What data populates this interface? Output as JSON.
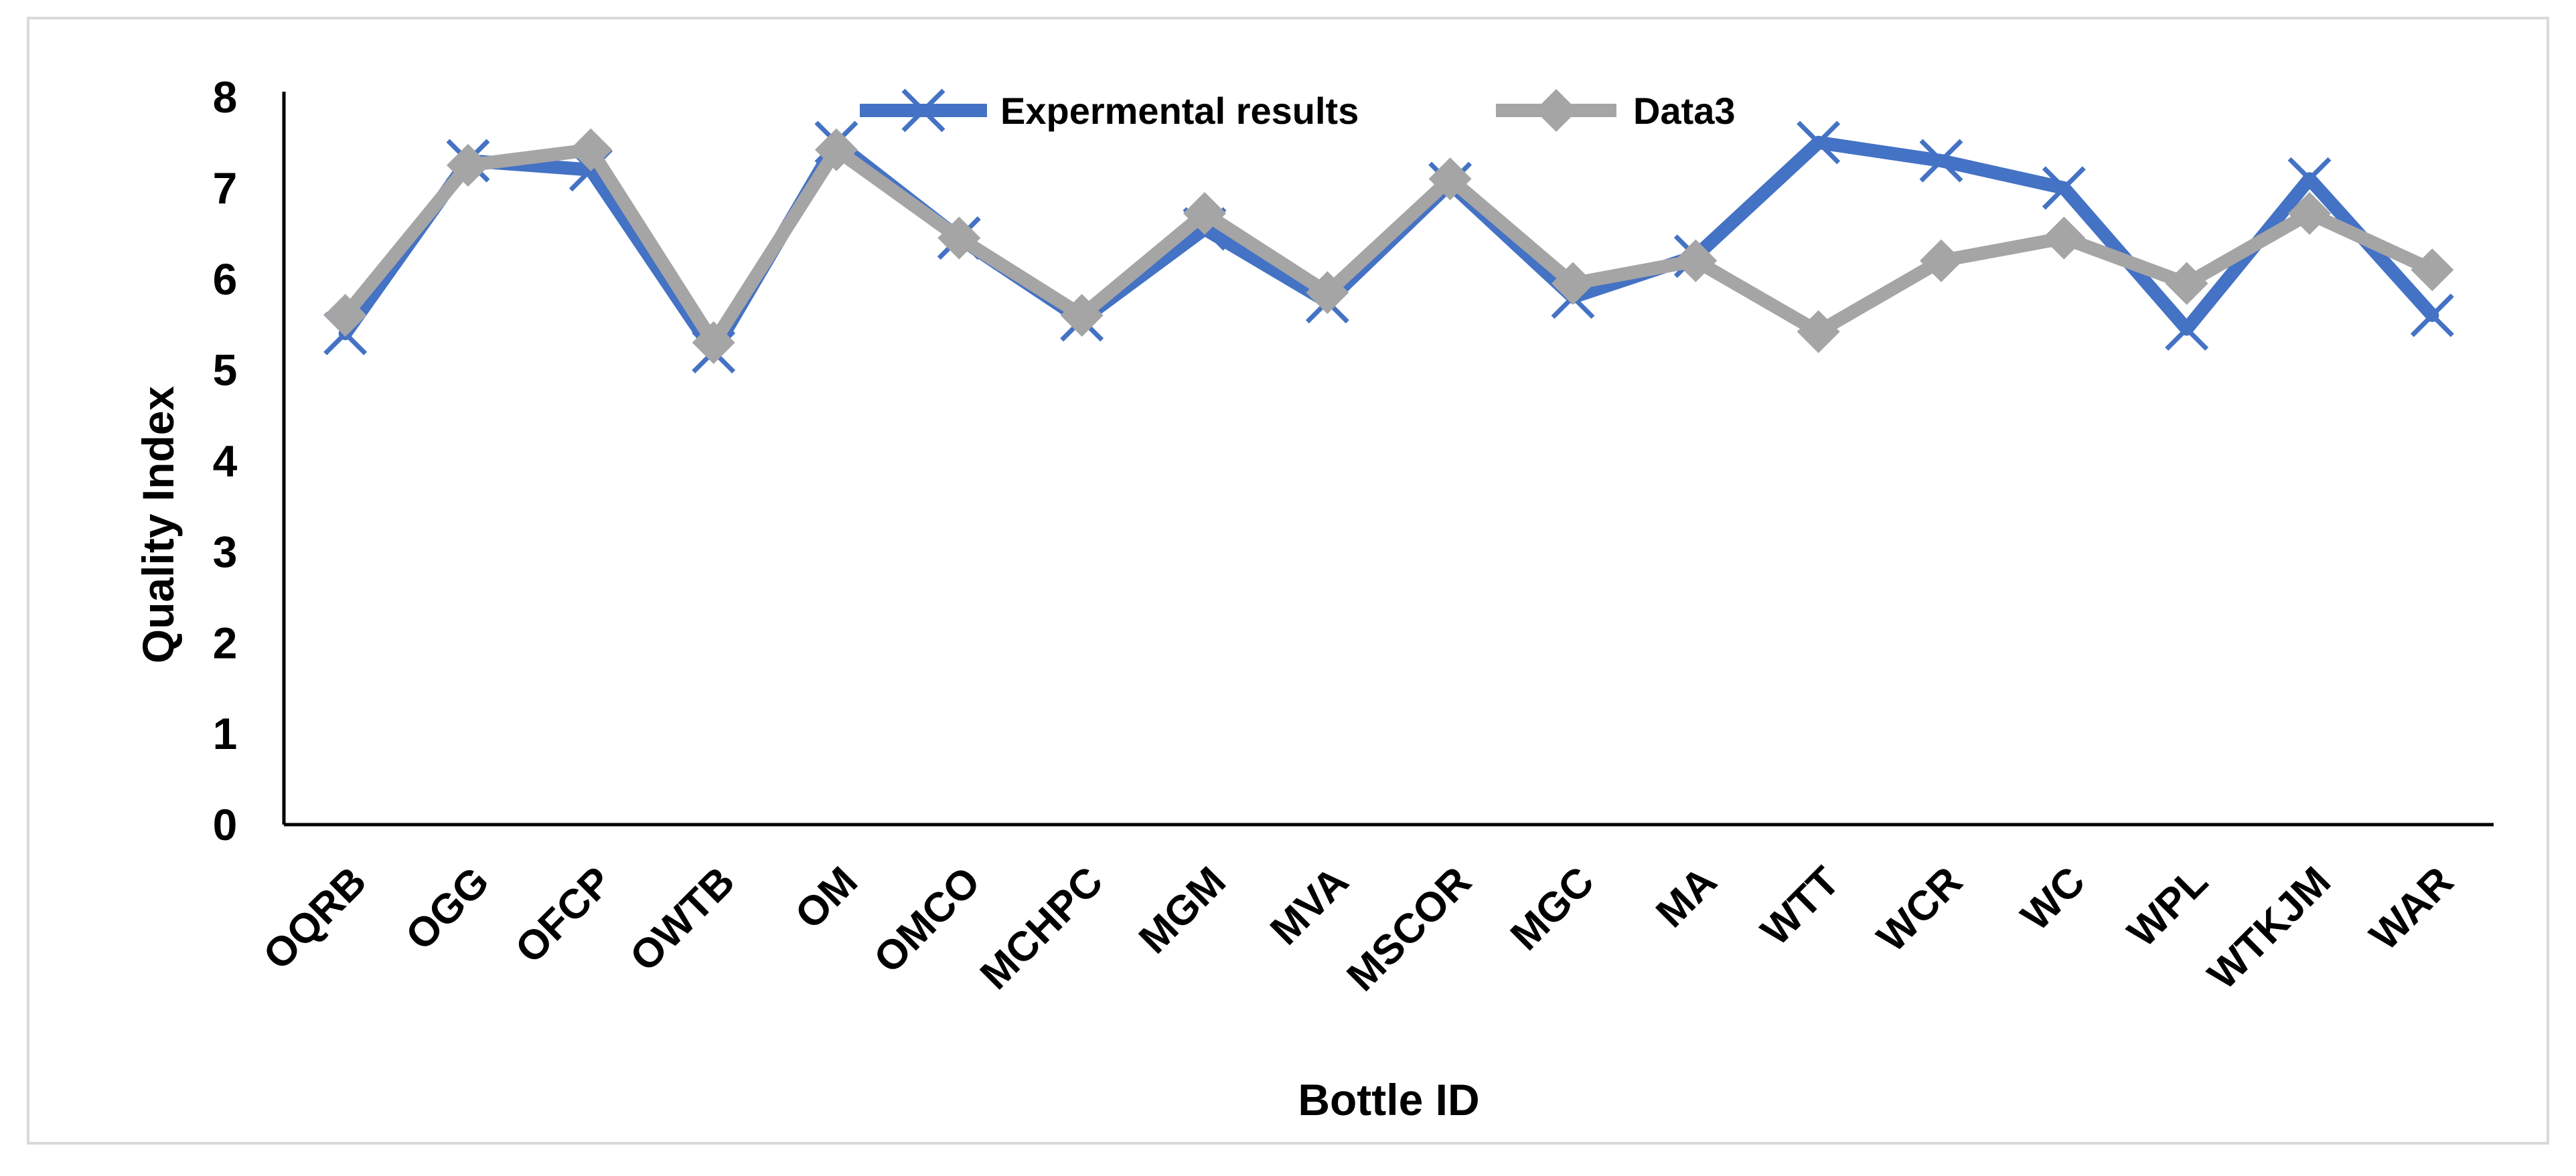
{
  "chart_data": {
    "type": "line",
    "title": "",
    "xlabel": "Bottle ID",
    "ylabel": "Quality Index",
    "ylim": [
      0,
      8
    ],
    "yticks": [
      "0",
      "1",
      "2",
      "3",
      "4",
      "5",
      "6",
      "7",
      "8"
    ],
    "grid": false,
    "legend_position": "top",
    "categories": [
      "OQRB",
      "OGG",
      "OFCP",
      "OWTB",
      "OM",
      "OMCO",
      "MCHPC",
      "MGM",
      "MVA",
      "MSCOR",
      "MGC",
      "MA",
      "WTT",
      "WCR",
      "WC",
      "WPL",
      "WTKJM",
      "WAR"
    ],
    "series": [
      {
        "name": "Expermental results",
        "marker": "x",
        "color": "#4472c4",
        "values": [
          5.4,
          7.3,
          7.2,
          5.2,
          7.5,
          6.45,
          5.55,
          6.55,
          5.75,
          7.05,
          5.8,
          6.25,
          7.5,
          7.3,
          7.0,
          5.45,
          7.1,
          5.6
        ]
      },
      {
        "name": "Data3",
        "marker": "diamond",
        "color": "#a5a5a5",
        "values": [
          5.6,
          7.25,
          7.42,
          5.3,
          7.42,
          6.45,
          5.6,
          6.72,
          5.85,
          7.1,
          5.95,
          6.2,
          5.42,
          6.2,
          6.45,
          5.95,
          6.72,
          6.1
        ]
      }
    ]
  }
}
